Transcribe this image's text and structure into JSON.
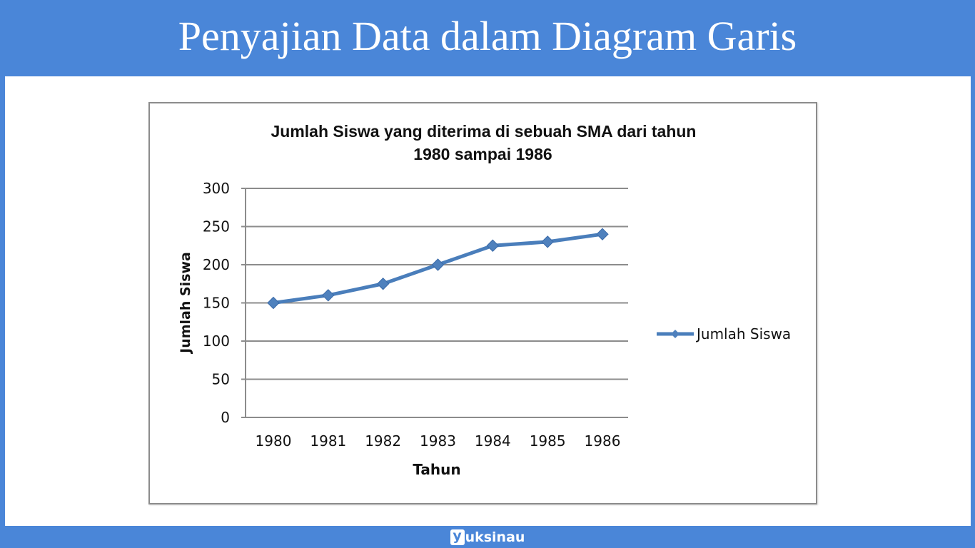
{
  "header": {
    "title": "Penyajian Data dalam Diagram Garis"
  },
  "footer": {
    "brand_badge": "y",
    "brand_rest": "uksinau"
  },
  "colors": {
    "page_blue": "#4a86d8",
    "series_line": "#4a7ebb",
    "marker_fill": "#4f81bd",
    "grid": "#8c8c8c"
  },
  "chart_data": {
    "type": "line",
    "title": "Jumlah Siswa yang diterima di sebuah SMA dari tahun 1980 sampai 1986",
    "title_lines": [
      "Jumlah Siswa yang diterima di sebuah SMA dari tahun",
      "1980 sampai 1986"
    ],
    "xlabel": "Tahun",
    "ylabel": "Jumlah Siswa",
    "categories": [
      "1980",
      "1981",
      "1982",
      "1983",
      "1984",
      "1985",
      "1986"
    ],
    "series": [
      {
        "name": "Jumlah Siswa",
        "values": [
          150,
          160,
          175,
          200,
          225,
          230,
          240
        ],
        "marker": "diamond"
      }
    ],
    "ylim": [
      0,
      300
    ],
    "yticks": [
      "0",
      "50",
      "100",
      "150",
      "200",
      "250",
      "300"
    ],
    "grid": true,
    "legend_position": "right"
  }
}
